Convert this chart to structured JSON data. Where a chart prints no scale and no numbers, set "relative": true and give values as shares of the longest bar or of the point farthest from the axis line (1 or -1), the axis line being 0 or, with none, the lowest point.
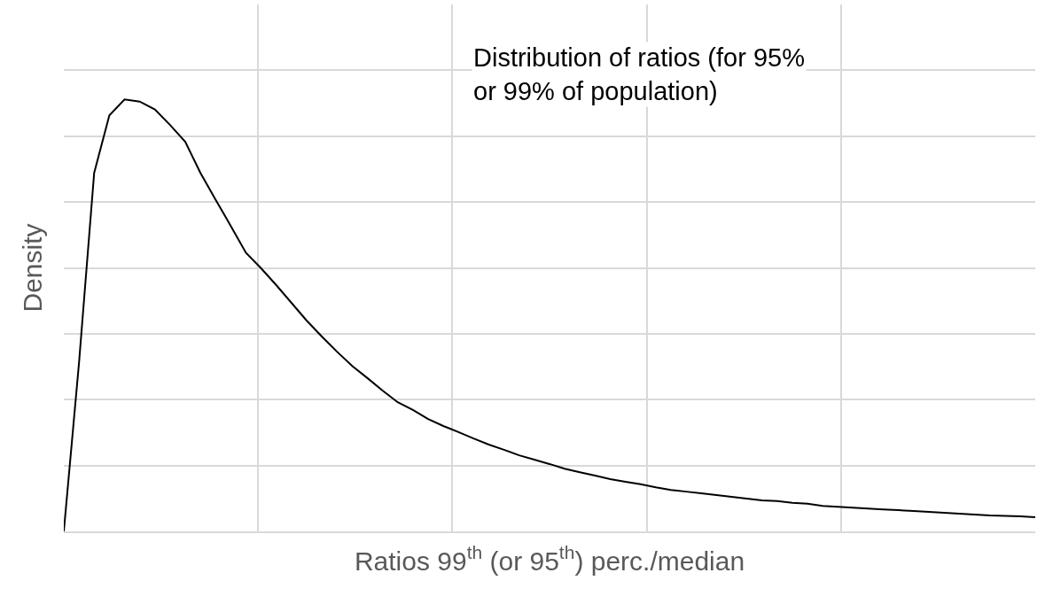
{
  "chart_data": {
    "type": "line",
    "relative": true,
    "title": "Distribution of ratios (for 95%\nor 99% of population)",
    "xlabel": "Ratios 99$^{th}$ (or 95$^{th}$) perc./median",
    "ylabel": "Density",
    "categories": [
      null,
      null,
      null,
      null,
      null,
      null,
      null,
      null,
      null,
      null,
      null,
      null,
      null,
      null,
      null,
      null,
      null,
      null,
      null,
      null,
      null,
      null,
      null,
      null,
      null,
      null,
      null,
      null,
      null,
      null,
      null,
      null,
      null,
      null,
      null,
      null,
      null,
      null,
      null,
      null,
      null,
      null,
      null,
      null,
      null,
      null,
      null,
      null,
      null,
      null,
      null,
      null,
      null,
      null,
      null,
      null,
      null,
      null,
      null,
      null,
      null,
      null,
      null,
      null,
      null
    ],
    "series": [
      {
        "color": "#000000",
        "values": [
          0,
          0.39,
          0.83,
          0.963,
          1.0,
          0.995,
          0.977,
          0.941,
          0.902,
          0.83,
          0.768,
          0.707,
          0.645,
          0.609,
          0.57,
          0.529,
          0.488,
          0.451,
          0.416,
          0.383,
          0.355,
          0.326,
          0.299,
          0.281,
          0.26,
          0.244,
          0.23,
          0.215,
          0.201,
          0.189,
          0.176,
          0.166,
          0.156,
          0.145,
          0.137,
          0.129,
          0.121,
          0.115,
          0.109,
          0.102,
          0.096,
          0.092,
          0.088,
          0.084,
          0.08,
          0.076,
          0.072,
          0.07,
          0.066,
          0.064,
          0.059,
          0.057,
          0.055,
          0.053,
          0.051,
          0.049,
          0.047,
          0.045,
          0.043,
          0.041,
          0.039,
          0.037,
          0.036,
          0.035,
          0.033
        ]
      }
    ],
    "tick_labels": false,
    "grid": true,
    "marker": "none",
    "line_style": "solid"
  }
}
